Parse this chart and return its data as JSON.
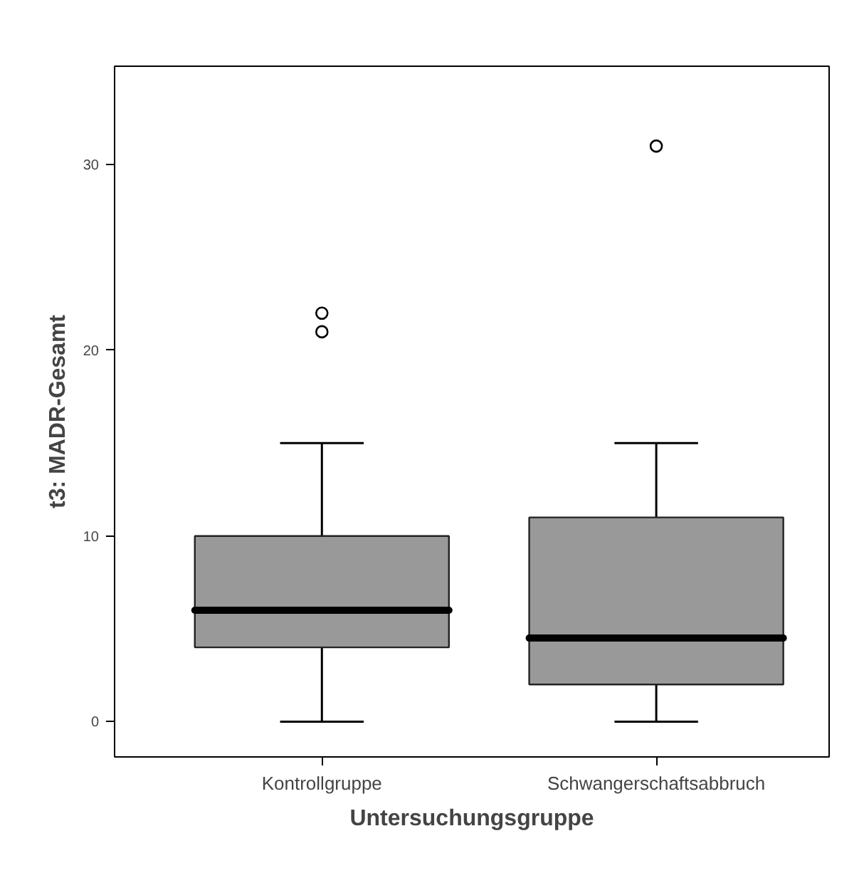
{
  "chart_data": {
    "type": "box",
    "xlabel": "Untersuchungsgruppe",
    "ylabel": "t3: MADR-Gesamt",
    "categories": [
      "Kontrollgruppe",
      "Schwangerschaftsabbruch"
    ],
    "color": "#999999",
    "boxes": [
      {
        "low": 0,
        "q1": 4,
        "median": 6,
        "q3": 10,
        "high": 15,
        "outliers": [
          21,
          22
        ]
      },
      {
        "low": 0,
        "q1": 2,
        "median": 4.5,
        "q3": 11,
        "high": 15,
        "outliers": [
          31
        ]
      }
    ],
    "ylim": [
      -1.9,
      35.3
    ],
    "yticks": [
      0,
      10,
      20,
      30
    ],
    "grid": false
  }
}
